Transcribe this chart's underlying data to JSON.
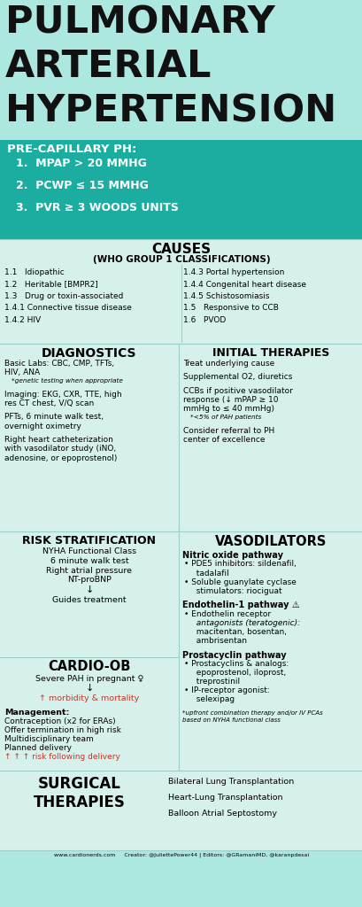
{
  "bg_main": "#ade8e0",
  "bg_teal": "#1aada0",
  "bg_section": "#d6f0eb",
  "bg_white": "#ffffff",
  "title_lines": [
    "PULMONARY",
    "ARTERIAL",
    "HYPERTENSION"
  ],
  "title_color": "#111111",
  "precap_bg": "#1aada0",
  "precap_title": "PRE-CAPILLARY PH:",
  "precap_items": [
    "1.  MPAP > 20 MMHG",
    "2.  PCWP ≤ 15 MMHG",
    "3.  PVR ≥ 3 WOODS UNITS"
  ],
  "causes_title": "CAUSES",
  "causes_subtitle": "(WHO GROUP 1 CLASSIFICATIONS)",
  "causes_left": [
    "1.1   Idiopathic",
    "1.2   Heritable [BMPR2]",
    "1.3   Drug or toxin-associated",
    "1.4.1 Connective tissue disease",
    "1.4.2 HIV"
  ],
  "causes_right": [
    "1.4.3 Portal hypertension",
    "1.4.4 Congenital heart disease",
    "1.4.5 Schistosomiasis",
    "1.5   Responsive to CCB",
    "1.6   PVOD"
  ],
  "diag_title": "DIAGNOSTICS",
  "diag_lines": [
    {
      "text": "Basic Labs: CBC, CMP, TFTs,",
      "size": 6.5,
      "style": "normal",
      "weight": "normal",
      "indent": 0,
      "color": "black"
    },
    {
      "text": "HIV, ANA",
      "size": 6.5,
      "style": "normal",
      "weight": "normal",
      "indent": 0,
      "color": "black"
    },
    {
      "text": "*genetic testing when appropriate",
      "size": 5.3,
      "style": "italic",
      "weight": "normal",
      "indent": 8,
      "color": "black"
    },
    {
      "text": "",
      "size": 5,
      "style": "normal",
      "weight": "normal",
      "indent": 0,
      "color": "black"
    },
    {
      "text": "Imaging: EKG, CXR, TTE, high",
      "size": 6.5,
      "style": "normal",
      "weight": "normal",
      "indent": 0,
      "color": "black"
    },
    {
      "text": "res CT chest, V/Q scan",
      "size": 6.5,
      "style": "normal",
      "weight": "normal",
      "indent": 0,
      "color": "black"
    },
    {
      "text": "",
      "size": 5,
      "style": "normal",
      "weight": "normal",
      "indent": 0,
      "color": "black"
    },
    {
      "text": "PFTs, 6 minute walk test,",
      "size": 6.5,
      "style": "normal",
      "weight": "normal",
      "indent": 0,
      "color": "black"
    },
    {
      "text": "overnight oximetry",
      "size": 6.5,
      "style": "normal",
      "weight": "normal",
      "indent": 0,
      "color": "black"
    },
    {
      "text": "",
      "size": 5,
      "style": "normal",
      "weight": "normal",
      "indent": 0,
      "color": "black"
    },
    {
      "text": "Right heart catheterization",
      "size": 6.5,
      "style": "normal",
      "weight": "normal",
      "indent": 0,
      "color": "black"
    },
    {
      "text": "with vasodilator study (iNO,",
      "size": 6.5,
      "style": "normal",
      "weight": "normal",
      "indent": 0,
      "color": "black"
    },
    {
      "text": "adenosine, or epoprostenol)",
      "size": 6.5,
      "style": "normal",
      "weight": "normal",
      "indent": 0,
      "color": "black"
    }
  ],
  "init_title": "INITIAL THERAPIES",
  "init_lines": [
    {
      "text": "Treat underlying cause",
      "size": 6.5,
      "style": "normal",
      "weight": "normal",
      "indent": 0,
      "color": "black"
    },
    {
      "text": "",
      "size": 5,
      "style": "normal",
      "weight": "normal",
      "indent": 0,
      "color": "black"
    },
    {
      "text": "Supplemental O2, diuretics",
      "size": 6.5,
      "style": "normal",
      "weight": "normal",
      "indent": 0,
      "color": "black"
    },
    {
      "text": "",
      "size": 5,
      "style": "normal",
      "weight": "normal",
      "indent": 0,
      "color": "black"
    },
    {
      "text": "CCBs if positive vasodilator",
      "size": 6.5,
      "style": "normal",
      "weight": "normal",
      "indent": 0,
      "color": "black"
    },
    {
      "text": "response (↓ mPAP ≥ 10",
      "size": 6.5,
      "style": "normal",
      "weight": "normal",
      "indent": 0,
      "color": "black"
    },
    {
      "text": "mmHg to ≤ 40 mmHg)",
      "size": 6.5,
      "style": "normal",
      "weight": "normal",
      "indent": 0,
      "color": "black"
    },
    {
      "text": "*<5% of PAH patients",
      "size": 5.3,
      "style": "italic",
      "weight": "normal",
      "indent": 8,
      "color": "black"
    },
    {
      "text": "",
      "size": 5,
      "style": "normal",
      "weight": "normal",
      "indent": 0,
      "color": "black"
    },
    {
      "text": "Consider referral to PH",
      "size": 6.5,
      "style": "normal",
      "weight": "normal",
      "indent": 0,
      "color": "black"
    },
    {
      "text": "center of excellence",
      "size": 6.5,
      "style": "normal",
      "weight": "normal",
      "indent": 0,
      "color": "black"
    }
  ],
  "risk_title": "RISK STRATIFICATION",
  "risk_lines": [
    {
      "text": "NYHA Functional Class",
      "size": 6.8,
      "style": "normal",
      "weight": "normal",
      "indent": 0,
      "color": "black"
    },
    {
      "text": "6 minute walk test",
      "size": 6.8,
      "style": "normal",
      "weight": "normal",
      "indent": 0,
      "color": "black"
    },
    {
      "text": "Right atrial pressure",
      "size": 6.8,
      "style": "normal",
      "weight": "normal",
      "indent": 0,
      "color": "black"
    },
    {
      "text": "NT-proBNP",
      "size": 6.8,
      "style": "normal",
      "weight": "normal",
      "indent": 0,
      "color": "black"
    },
    {
      "text": "↓",
      "size": 8,
      "style": "normal",
      "weight": "normal",
      "indent": 0,
      "color": "black"
    },
    {
      "text": "Guides treatment",
      "size": 6.8,
      "style": "normal",
      "weight": "normal",
      "indent": 0,
      "color": "black"
    }
  ],
  "vasodil_title": "VASODILATORS",
  "vasodil_lines": [
    {
      "text": "Nitric oxide pathway",
      "size": 7,
      "style": "normal",
      "weight": "bold",
      "indent": 0,
      "color": "black"
    },
    {
      "text": "• PDE5 inhibitors: sildenafil,",
      "size": 6.5,
      "style": "normal",
      "weight": "normal",
      "indent": 2,
      "color": "black"
    },
    {
      "text": "  tadalafil",
      "size": 6.5,
      "style": "normal",
      "weight": "normal",
      "indent": 10,
      "color": "black"
    },
    {
      "text": "• Soluble guanylate cyclase",
      "size": 6.5,
      "style": "normal",
      "weight": "normal",
      "indent": 2,
      "color": "black"
    },
    {
      "text": "  stimulators: riociguat",
      "size": 6.5,
      "style": "normal",
      "weight": "normal",
      "indent": 10,
      "color": "black"
    },
    {
      "text": "",
      "size": 4,
      "style": "normal",
      "weight": "normal",
      "indent": 0,
      "color": "black"
    },
    {
      "text": "Endothelin-1 pathway ⚠️",
      "size": 7,
      "style": "normal",
      "weight": "bold",
      "indent": 0,
      "color": "black"
    },
    {
      "text": "• Endothelin receptor",
      "size": 6.5,
      "style": "normal",
      "weight": "normal",
      "indent": 2,
      "color": "black"
    },
    {
      "text": "  antagonists (teratogenic):",
      "size": 6.5,
      "style": "italic",
      "weight": "normal",
      "indent": 10,
      "color": "black"
    },
    {
      "text": "  macitentan, bosentan,",
      "size": 6.5,
      "style": "normal",
      "weight": "normal",
      "indent": 10,
      "color": "black"
    },
    {
      "text": "  ambrisentan",
      "size": 6.5,
      "style": "normal",
      "weight": "normal",
      "indent": 10,
      "color": "black"
    },
    {
      "text": "",
      "size": 4,
      "style": "normal",
      "weight": "normal",
      "indent": 0,
      "color": "black"
    },
    {
      "text": "Prostacyclin pathway",
      "size": 7,
      "style": "normal",
      "weight": "bold",
      "indent": 0,
      "color": "black"
    },
    {
      "text": "• Prostacyclins & analogs:",
      "size": 6.5,
      "style": "normal",
      "weight": "normal",
      "indent": 2,
      "color": "black"
    },
    {
      "text": "  epoprostenol, iloprost,",
      "size": 6.5,
      "style": "normal",
      "weight": "normal",
      "indent": 10,
      "color": "black"
    },
    {
      "text": "  treprostinil",
      "size": 6.5,
      "style": "normal",
      "weight": "normal",
      "indent": 10,
      "color": "black"
    },
    {
      "text": "• IP-receptor agonist:",
      "size": 6.5,
      "style": "normal",
      "weight": "normal",
      "indent": 2,
      "color": "black"
    },
    {
      "text": "  selexipag",
      "size": 6.5,
      "style": "normal",
      "weight": "normal",
      "indent": 10,
      "color": "black"
    },
    {
      "text": "",
      "size": 4,
      "style": "normal",
      "weight": "normal",
      "indent": 0,
      "color": "black"
    },
    {
      "text": "*upfront combination therapy and/or IV PCAs",
      "size": 5,
      "style": "italic",
      "weight": "normal",
      "indent": 0,
      "color": "black"
    },
    {
      "text": "based on NYHA functional class",
      "size": 5,
      "style": "italic",
      "weight": "normal",
      "indent": 0,
      "color": "black"
    }
  ],
  "cardio_title": "CARDIO-OB",
  "cardio_lines": [
    {
      "text": "Severe PAH in pregnant ♀",
      "size": 6.8,
      "style": "normal",
      "weight": "normal",
      "indent": 0,
      "color": "black",
      "center": true
    },
    {
      "text": "↓",
      "size": 8,
      "style": "normal",
      "weight": "normal",
      "indent": 0,
      "color": "black",
      "center": true
    },
    {
      "text": "↑ morbidity & mortality",
      "size": 6.8,
      "style": "normal",
      "weight": "normal",
      "indent": 0,
      "color": "#c0392b",
      "center": true
    },
    {
      "text": "",
      "size": 4,
      "style": "normal",
      "weight": "normal",
      "indent": 0,
      "color": "black",
      "center": false
    },
    {
      "text": "Management:",
      "size": 6.8,
      "style": "normal",
      "weight": "bold",
      "indent": 0,
      "color": "black",
      "center": false
    },
    {
      "text": "Contraception (x2 for ERAs)",
      "size": 6.5,
      "style": "normal",
      "weight": "normal",
      "indent": 0,
      "color": "black",
      "center": false
    },
    {
      "text": "Offer termination in high risk",
      "size": 6.5,
      "style": "normal",
      "weight": "normal",
      "indent": 0,
      "color": "black",
      "center": false
    },
    {
      "text": "Multidisciplinary team",
      "size": 6.5,
      "style": "normal",
      "weight": "normal",
      "indent": 0,
      "color": "black",
      "center": false
    },
    {
      "text": "Planned delivery",
      "size": 6.5,
      "style": "normal",
      "weight": "normal",
      "indent": 0,
      "color": "black",
      "center": false
    },
    {
      "text": "↑ ↑ ↑ risk following delivery",
      "size": 6.5,
      "style": "normal",
      "weight": "normal",
      "indent": 0,
      "color": "#c0392b",
      "center": false
    }
  ],
  "surg_title": "SURGICAL\nTHERAPIES",
  "surg_lines": [
    "Bilateral Lung Transplantation",
    "Heart-Lung Transplantation",
    "Balloon Atrial Septostomy"
  ],
  "footer": "www.cardionerds.com     Creator: @JuliettePower44 | Editors: @GRamaniMD, @karanpdesai",
  "div_color": "#9ecec8",
  "section_bg": "#d6f0eb"
}
